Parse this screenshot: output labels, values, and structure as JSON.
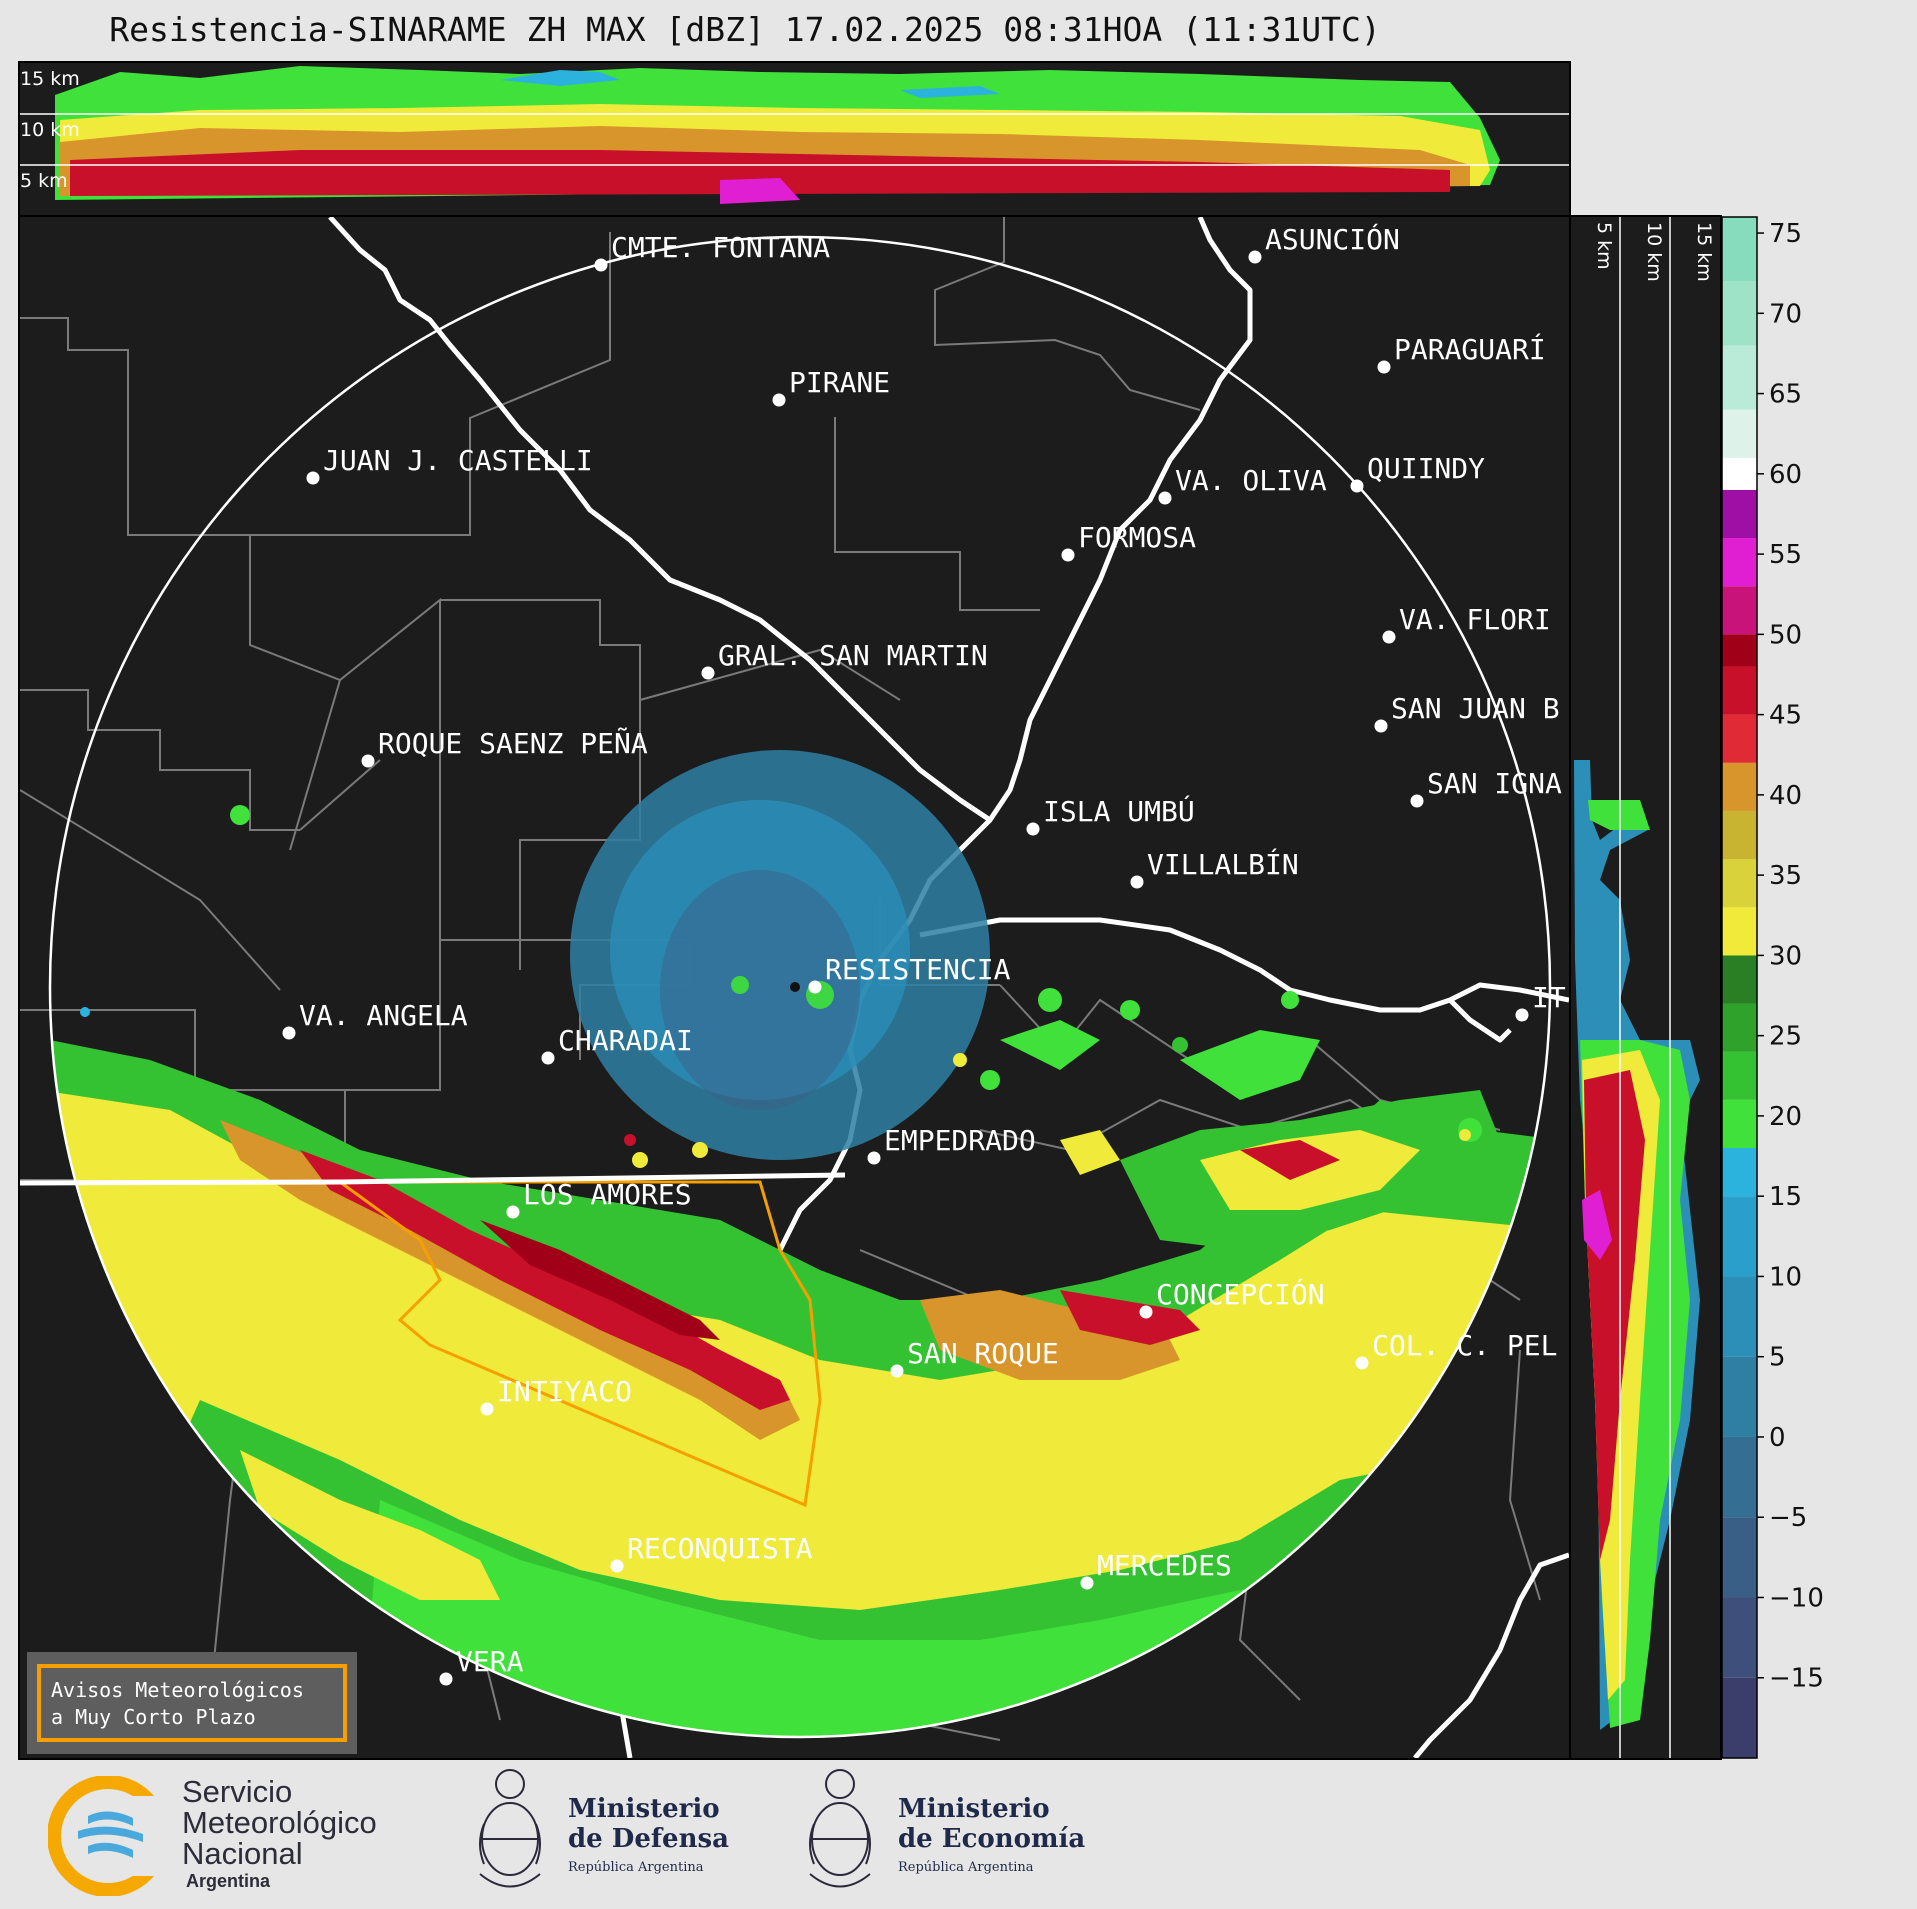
{
  "title": "Resistencia-SINARAME ZH MAX [dBZ] 17.02.2025 08:31HOA (11:31UTC)",
  "top_profile_labels": [
    "15 km",
    "10 km",
    "5 km"
  ],
  "side_profile_labels": [
    "5 km",
    "10 km",
    "15 km"
  ],
  "colorbar": {
    "ticks": [
      "75",
      "70",
      "65",
      "60",
      "55",
      "50",
      "45",
      "40",
      "35",
      "30",
      "25",
      "20",
      "15",
      "10",
      "5",
      "0",
      "−5",
      "−10",
      "−15"
    ],
    "min": -20,
    "max": 76,
    "colors": [
      {
        "from": -20,
        "color": "#3b3d6b"
      },
      {
        "from": -15,
        "color": "#3d4f7a"
      },
      {
        "from": -10,
        "color": "#3a5f86"
      },
      {
        "from": -5,
        "color": "#346e93"
      },
      {
        "from": 0,
        "color": "#2f7fa3"
      },
      {
        "from": 5,
        "color": "#2b8fb8"
      },
      {
        "from": 10,
        "color": "#2a9fcc"
      },
      {
        "from": 15,
        "color": "#2bb2dd"
      },
      {
        "from": 18,
        "color": "#3fe13a"
      },
      {
        "from": 21,
        "color": "#35c232"
      },
      {
        "from": 24,
        "color": "#2ea22b"
      },
      {
        "from": 27,
        "color": "#2a7f25"
      },
      {
        "from": 30,
        "color": "#f0ea3a"
      },
      {
        "from": 33,
        "color": "#d9d23a"
      },
      {
        "from": 36,
        "color": "#c9b431"
      },
      {
        "from": 39,
        "color": "#d8952c"
      },
      {
        "from": 42,
        "color": "#e02a35"
      },
      {
        "from": 45,
        "color": "#c8102a"
      },
      {
        "from": 48,
        "color": "#a00018"
      },
      {
        "from": 50,
        "color": "#c8147a"
      },
      {
        "from": 53,
        "color": "#e01ed2"
      },
      {
        "from": 56,
        "color": "#9d0fa5"
      },
      {
        "from": 59,
        "color": "#ffffff"
      },
      {
        "from": 61,
        "color": "#ddf3ea"
      },
      {
        "from": 64,
        "color": "#b9ebd8"
      },
      {
        "from": 68,
        "color": "#9ee3c8"
      },
      {
        "from": 72,
        "color": "#86dcbd"
      }
    ]
  },
  "cities": [
    {
      "name": "CMTE. FONTANA"
    },
    {
      "name": "ASUNCIÓN"
    },
    {
      "name": "PARAGUARÍ"
    },
    {
      "name": "PIRANE"
    },
    {
      "name": "JUAN J. CASTELLI"
    },
    {
      "name": "VA. OLIVA"
    },
    {
      "name": "QUIINDY"
    },
    {
      "name": "FORMOSA"
    },
    {
      "name": "VA. FLORI"
    },
    {
      "name": "GRAL. SAN MARTIN"
    },
    {
      "name": "SAN JUAN B"
    },
    {
      "name": "ROQUE SAENZ PEÑA"
    },
    {
      "name": "SAN IGNA"
    },
    {
      "name": "ISLA UMBÚ"
    },
    {
      "name": "VILLALBÍN"
    },
    {
      "name": "RESISTENCIA"
    },
    {
      "name": "VA. ANGELA"
    },
    {
      "name": "CHARADAI"
    },
    {
      "name": "IT"
    },
    {
      "name": "EMPEDRADO"
    },
    {
      "name": "LOS AMORES"
    },
    {
      "name": "CONCEPCIÓN"
    },
    {
      "name": "SAN ROQUE"
    },
    {
      "name": "COL. C. PEL"
    },
    {
      "name": "INTIYACO"
    },
    {
      "name": "RECONQUISTA"
    },
    {
      "name": "MERCEDES"
    },
    {
      "name": "VERA"
    }
  ],
  "warning_box": {
    "line1": "Avisos Meteorológicos",
    "line2": "a Muy Corto Plazo"
  },
  "logos": {
    "smn": {
      "line1": "Servicio",
      "line2": "Meteorológico",
      "line3": "Nacional",
      "line4": "Argentina"
    },
    "defensa": {
      "line1": "Ministerio",
      "line2": "de Defensa",
      "line3": "República Argentina"
    },
    "economia": {
      "line1": "Ministerio",
      "line2": "de Economía",
      "line3": "República Argentina"
    }
  },
  "colors": {
    "map_bg": "#1c1c1c",
    "page_bg": "#e6e6e6",
    "range_ring": "#ffffff",
    "warning_border": "#f5a000",
    "warning_polygon": "#f5a000"
  }
}
